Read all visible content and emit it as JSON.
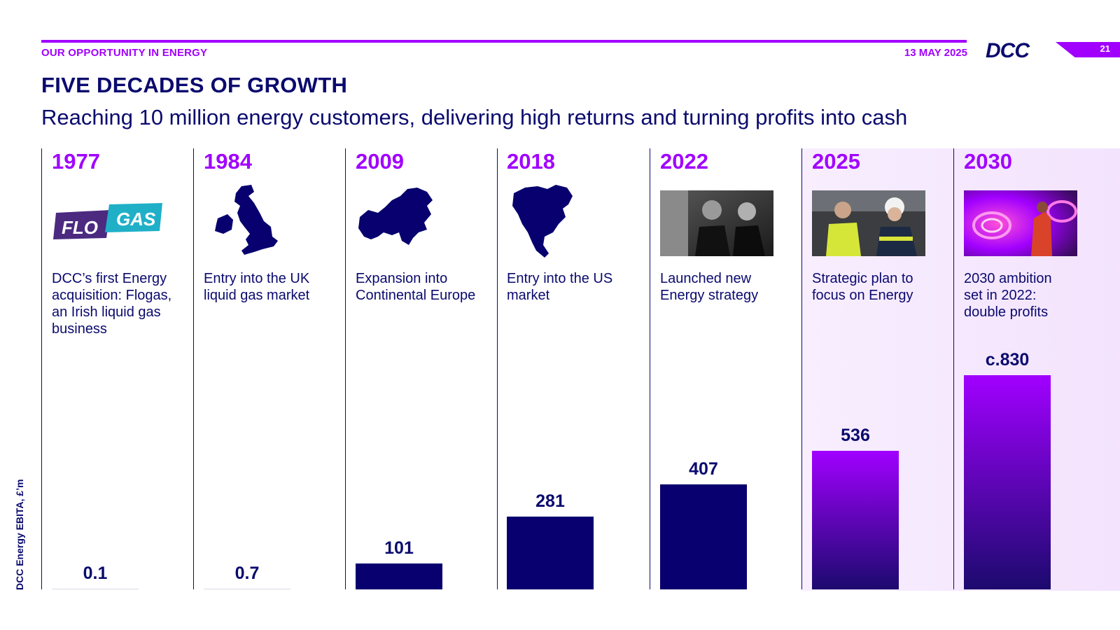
{
  "header": {
    "section": "OUR OPPORTUNITY IN ENERGY",
    "date": "13 MAY 2025",
    "logo": "DCC",
    "page_number": "21"
  },
  "title": "FIVE DECADES OF GROWTH",
  "subtitle": "Reaching 10 million energy customers, delivering high returns and turning profits into cash",
  "columns": [
    {
      "year": "1977",
      "description": "DCC’s first Energy acquisition: Flogas, an Irish liquid gas business",
      "visual": "flogas-logo"
    },
    {
      "year": "1984",
      "description": "Entry into the UK liquid gas market",
      "visual": "uk-map-icon"
    },
    {
      "year": "2009",
      "description": "Expansion into Continental Europe",
      "visual": "europe-map-icon"
    },
    {
      "year": "2018",
      "description": "Entry into the US market",
      "visual": "north-america-map-icon"
    },
    {
      "year": "2022",
      "description": "Launched new Energy strategy",
      "visual": "people-photo"
    },
    {
      "year": "2025",
      "description": "Strategic plan to focus on Energy",
      "visual": "engineers-photo"
    },
    {
      "year": "2030",
      "description": "2030 ambition set in 2022: double profits",
      "visual": "abstract-photo"
    }
  ],
  "logos": {
    "flogas_part1": "FLO",
    "flogas_part2": "GAS"
  },
  "chart_data": {
    "type": "bar",
    "categories": [
      "1977",
      "1984",
      "2009",
      "2018",
      "2022",
      "2025",
      "2030"
    ],
    "values": [
      0.1,
      0.7,
      101,
      281,
      407,
      536,
      830
    ],
    "value_labels": [
      "0.1",
      "0.7",
      "101",
      "281",
      "407",
      "536",
      "c.830"
    ],
    "ylabel": "DCC Energy EBITA, £’m",
    "colors": {
      "historic": "#07006e",
      "projected_top": "#a100ff",
      "projected_bottom": "#1c0a6e",
      "accent": "#a100ff",
      "text": "#0a0a6e"
    },
    "grid": false
  }
}
